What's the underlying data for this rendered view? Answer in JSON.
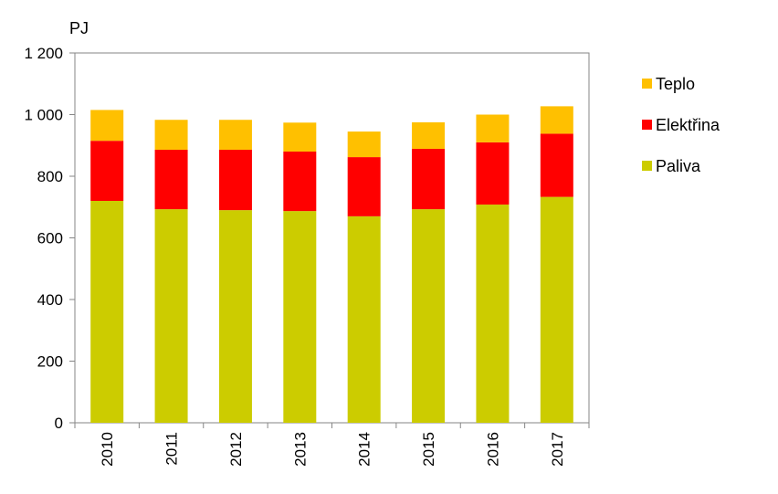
{
  "chart_data": {
    "type": "bar",
    "stacked": true,
    "title": "",
    "xlabel": "",
    "ylabel": "PJ",
    "ylim": [
      0,
      1200
    ],
    "yticks": [
      {
        "value": 0,
        "label": "0"
      },
      {
        "value": 200,
        "label": "200"
      },
      {
        "value": 400,
        "label": "400"
      },
      {
        "value": 600,
        "label": "600"
      },
      {
        "value": 800,
        "label": "800"
      },
      {
        "value": 1000,
        "label": "1 000"
      },
      {
        "value": 1200,
        "label": "1 200"
      }
    ],
    "categories": [
      "2010",
      "2011",
      "2012",
      "2013",
      "2014",
      "2015",
      "2016",
      "2017"
    ],
    "series": [
      {
        "name": "Paliva",
        "color": "#CCCC00",
        "values": [
          720,
          693,
          690,
          687,
          670,
          693,
          708,
          733
        ]
      },
      {
        "name": "Elektřina",
        "color": "#FF0000",
        "values": [
          195,
          193,
          196,
          193,
          192,
          196,
          202,
          205
        ]
      },
      {
        "name": "Teplo",
        "color": "#FFC000",
        "values": [
          100,
          97,
          97,
          94,
          83,
          86,
          90,
          89
        ]
      }
    ],
    "legend": {
      "placement": "right",
      "order": [
        "Teplo",
        "Elektřina",
        "Paliva"
      ]
    },
    "grid": false
  }
}
